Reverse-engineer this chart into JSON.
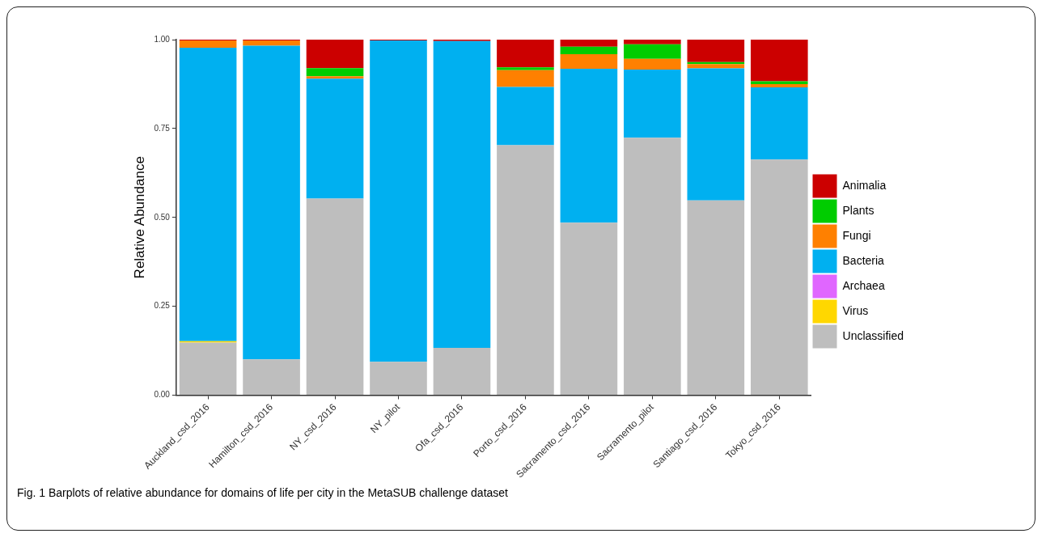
{
  "chart_data": {
    "type": "bar",
    "stacked": true,
    "ylabel": "Relative Abundance",
    "categories": [
      "Auckland_csd_2016",
      "Hamilton_csd_2016",
      "NY_csd_2016",
      "NY_pilot",
      "Ofa_csd_2016",
      "Porto_csd_2016",
      "Sacramento_csd_2016",
      "Sacramento_pilot",
      "Santiago_csd_2016",
      "Tokyo_csd_2016"
    ],
    "series": [
      {
        "name": "Unclassified",
        "color": "#bebebe",
        "values": [
          0.148,
          0.101,
          0.553,
          0.094,
          0.133,
          0.703,
          0.485,
          0.724,
          0.548,
          0.663
        ]
      },
      {
        "name": "Virus",
        "color": "#ffd700",
        "values": [
          0.004,
          0,
          0,
          0,
          0,
          0,
          0,
          0,
          0,
          0
        ]
      },
      {
        "name": "Archaea",
        "color": "#e066ff",
        "values": [
          0,
          0,
          0,
          0,
          0,
          0,
          0,
          0,
          0,
          0
        ]
      },
      {
        "name": "Bacteria",
        "color": "#00b0f0",
        "values": [
          0.825,
          0.882,
          0.337,
          0.904,
          0.863,
          0.164,
          0.433,
          0.192,
          0.371,
          0.203
        ]
      },
      {
        "name": "Fungi",
        "color": "#ff8000",
        "values": [
          0.021,
          0.015,
          0.007,
          0,
          0,
          0.047,
          0.041,
          0.03,
          0.012,
          0.009
        ]
      },
      {
        "name": "Plants",
        "color": "#00cc00",
        "values": [
          0,
          0,
          0.023,
          0,
          0,
          0.008,
          0.021,
          0.041,
          0.006,
          0.008
        ]
      },
      {
        "name": "Animalia",
        "color": "#cc0000",
        "values": [
          0.002,
          0.002,
          0.08,
          0.002,
          0.004,
          0.078,
          0.02,
          0.013,
          0.063,
          0.117
        ]
      }
    ],
    "ylim": [
      0,
      1
    ],
    "yticks": [
      {
        "value": 0,
        "label": "0.00"
      },
      {
        "value": 0.25,
        "label": "0.25"
      },
      {
        "value": 0.5,
        "label": "0.50"
      },
      {
        "value": 0.75,
        "label": "0.75"
      },
      {
        "value": 1,
        "label": "1.00"
      }
    ],
    "grid": false,
    "legend": "right",
    "annotations": [
      "Fig. 1 Barplots of relative abundance for domains of life per city in the MetaSUB challenge dataset"
    ]
  }
}
